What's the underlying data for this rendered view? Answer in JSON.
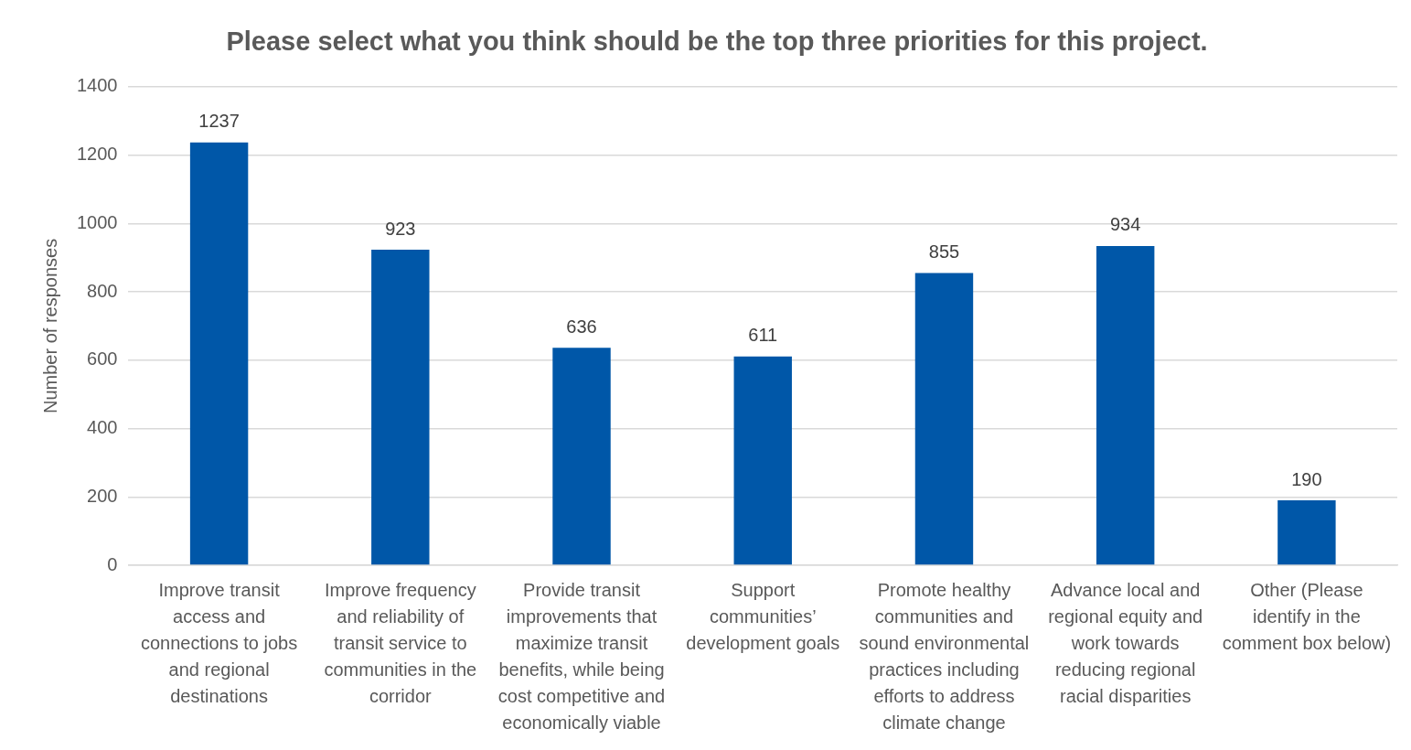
{
  "chart_data": {
    "type": "bar",
    "title": "Please select what you think should be the top three priorities for this project.",
    "ylabel": "Number of responses",
    "categories": [
      "Improve transit access and connections to jobs and regional destinations",
      "Improve frequency and reliability of transit service to communities in the corridor",
      "Provide transit improvements that maximize transit benefits, while being cost competitive and economically viable",
      "Support communities’ development goals",
      "Promote healthy communities and sound environmental practices including efforts to address climate change",
      "Advance local and regional equity and work towards reducing regional racial disparities",
      "Other (Please identify in the comment box below)"
    ],
    "values": [
      1237,
      923,
      636,
      611,
      855,
      934,
      190
    ],
    "color": "#0057a8",
    "ylim": [
      0,
      1400
    ],
    "yticks": [
      0,
      200,
      400,
      600,
      800,
      1000,
      1200,
      1400
    ],
    "grid": "y",
    "data_labels": true,
    "legend": false
  }
}
